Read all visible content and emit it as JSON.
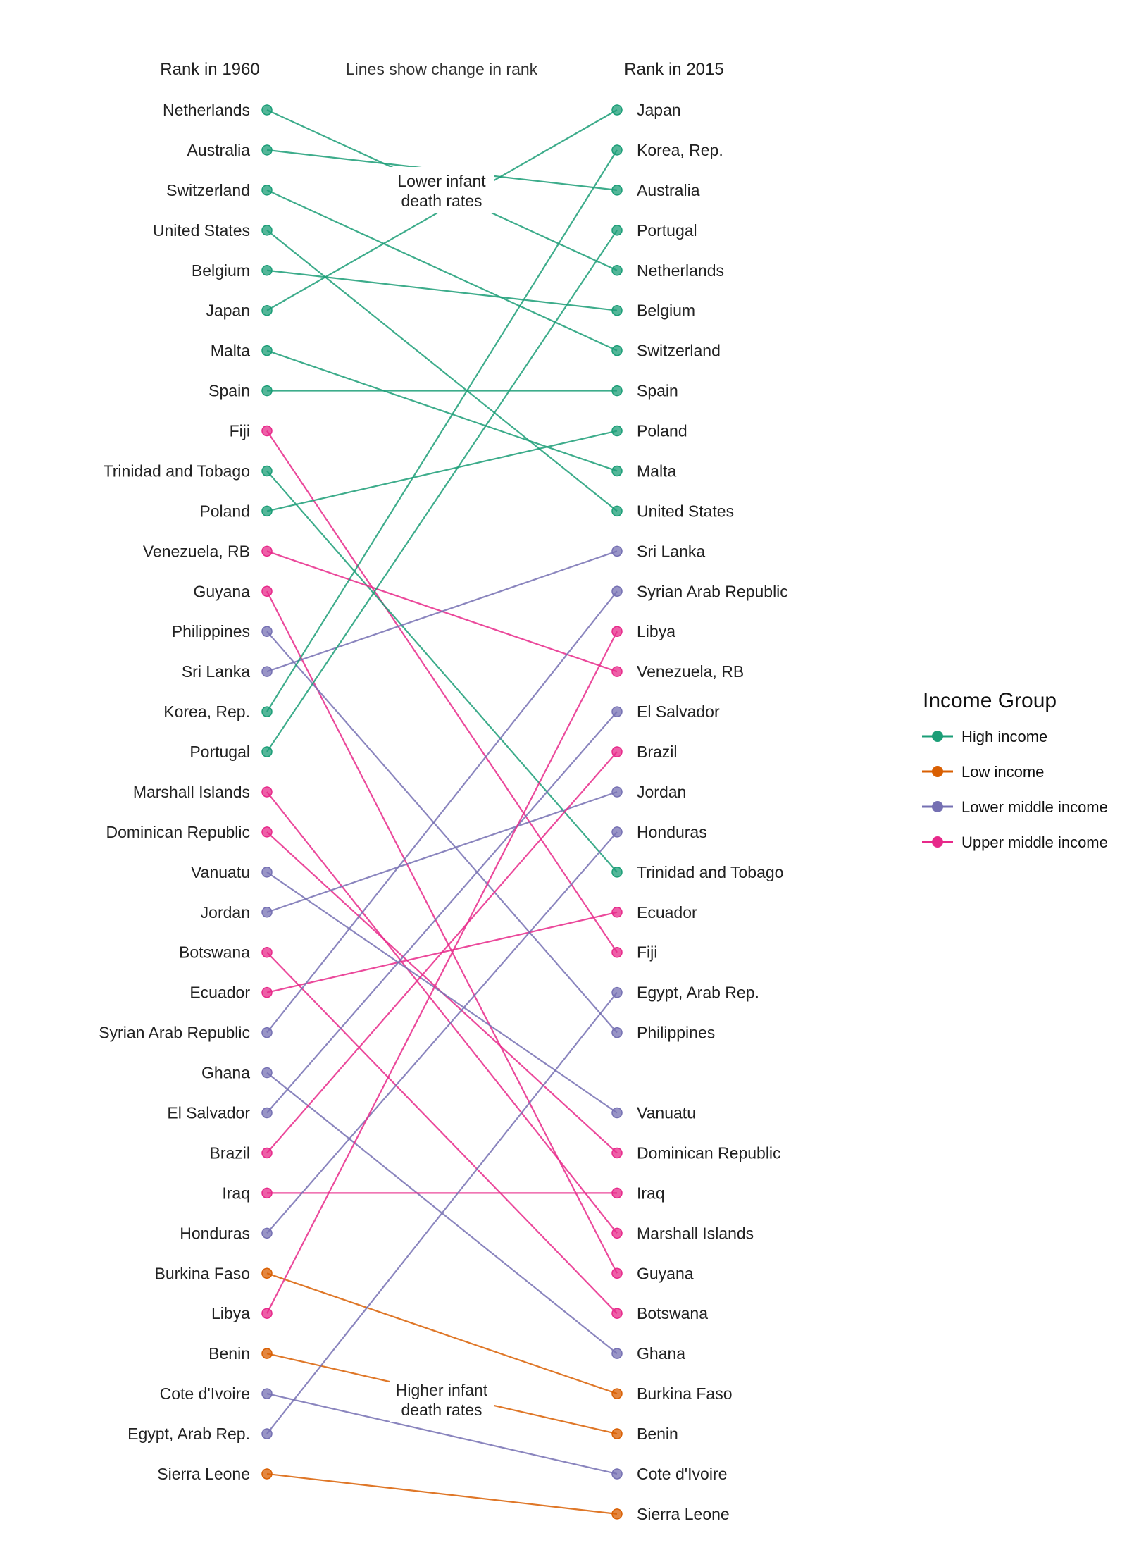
{
  "chart_data": {
    "type": "slope",
    "left_header": "Rank in 1960",
    "right_header": "Rank in 2015",
    "subtitle": "Lines show change in rank",
    "annotation_top": [
      "Lower infant",
      "death rates"
    ],
    "annotation_bottom": [
      "Higher infant",
      "death rates"
    ],
    "legend_title": "Income Group",
    "groups": [
      {
        "name": "High income",
        "color": "#1b9e77"
      },
      {
        "name": "Low income",
        "color": "#d95f02"
      },
      {
        "name": "Lower middle income",
        "color": "#7570b3"
      },
      {
        "name": "Upper middle income",
        "color": "#e7298a"
      }
    ],
    "countries": [
      {
        "name": "Netherlands",
        "group": "High income",
        "rank_1960": 1,
        "rank_2015": 5
      },
      {
        "name": "Australia",
        "group": "High income",
        "rank_1960": 2,
        "rank_2015": 3
      },
      {
        "name": "Switzerland",
        "group": "High income",
        "rank_1960": 3,
        "rank_2015": 7
      },
      {
        "name": "United States",
        "group": "High income",
        "rank_1960": 4,
        "rank_2015": 11
      },
      {
        "name": "Belgium",
        "group": "High income",
        "rank_1960": 5,
        "rank_2015": 6
      },
      {
        "name": "Japan",
        "group": "High income",
        "rank_1960": 6,
        "rank_2015": 1
      },
      {
        "name": "Malta",
        "group": "High income",
        "rank_1960": 7,
        "rank_2015": 10
      },
      {
        "name": "Spain",
        "group": "High income",
        "rank_1960": 8,
        "rank_2015": 8
      },
      {
        "name": "Fiji",
        "group": "Upper middle income",
        "rank_1960": 9,
        "rank_2015": 22
      },
      {
        "name": "Trinidad and Tobago",
        "group": "High income",
        "rank_1960": 10,
        "rank_2015": 20
      },
      {
        "name": "Poland",
        "group": "High income",
        "rank_1960": 11,
        "rank_2015": 9
      },
      {
        "name": "Venezuela, RB",
        "group": "Upper middle income",
        "rank_1960": 12,
        "rank_2015": 15
      },
      {
        "name": "Guyana",
        "group": "Upper middle income",
        "rank_1960": 13,
        "rank_2015": 30
      },
      {
        "name": "Philippines",
        "group": "Lower middle income",
        "rank_1960": 14,
        "rank_2015": 24
      },
      {
        "name": "Sri Lanka",
        "group": "Lower middle income",
        "rank_1960": 15,
        "rank_2015": 12
      },
      {
        "name": "Korea, Rep.",
        "group": "High income",
        "rank_1960": 16,
        "rank_2015": 2
      },
      {
        "name": "Portugal",
        "group": "High income",
        "rank_1960": 17,
        "rank_2015": 4
      },
      {
        "name": "Marshall Islands",
        "group": "Upper middle income",
        "rank_1960": 18,
        "rank_2015": 29
      },
      {
        "name": "Dominican Republic",
        "group": "Upper middle income",
        "rank_1960": 19,
        "rank_2015": 27
      },
      {
        "name": "Vanuatu",
        "group": "Lower middle income",
        "rank_1960": 20,
        "rank_2015": 26
      },
      {
        "name": "Jordan",
        "group": "Lower middle income",
        "rank_1960": 21,
        "rank_2015": 18
      },
      {
        "name": "Botswana",
        "group": "Upper middle income",
        "rank_1960": 22,
        "rank_2015": 31
      },
      {
        "name": "Ecuador",
        "group": "Upper middle income",
        "rank_1960": 23,
        "rank_2015": 21
      },
      {
        "name": "Syrian Arab Republic",
        "group": "Lower middle income",
        "rank_1960": 24,
        "rank_2015": 13
      },
      {
        "name": "Ghana",
        "group": "Lower middle income",
        "rank_1960": 25,
        "rank_2015": 32
      },
      {
        "name": "El Salvador",
        "group": "Lower middle income",
        "rank_1960": 26,
        "rank_2015": 16
      },
      {
        "name": "Brazil",
        "group": "Upper middle income",
        "rank_1960": 27,
        "rank_2015": 17
      },
      {
        "name": "Iraq",
        "group": "Upper middle income",
        "rank_1960": 28,
        "rank_2015": 28
      },
      {
        "name": "Honduras",
        "group": "Lower middle income",
        "rank_1960": 29,
        "rank_2015": 19
      },
      {
        "name": "Burkina Faso",
        "group": "Low income",
        "rank_1960": 30,
        "rank_2015": 33
      },
      {
        "name": "Libya",
        "group": "Upper middle income",
        "rank_1960": 31,
        "rank_2015": 14
      },
      {
        "name": "Benin",
        "group": "Low income",
        "rank_1960": 32,
        "rank_2015": 34
      },
      {
        "name": "Cote d'Ivoire",
        "group": "Lower middle income",
        "rank_1960": 33,
        "rank_2015": 35
      },
      {
        "name": "Egypt, Arab Rep.",
        "group": "Lower middle income",
        "rank_1960": 34,
        "rank_2015": 23
      },
      {
        "name": "Sierra Leone",
        "group": "Low income",
        "rank_1960": 35,
        "rank_2015": 36
      }
    ]
  }
}
